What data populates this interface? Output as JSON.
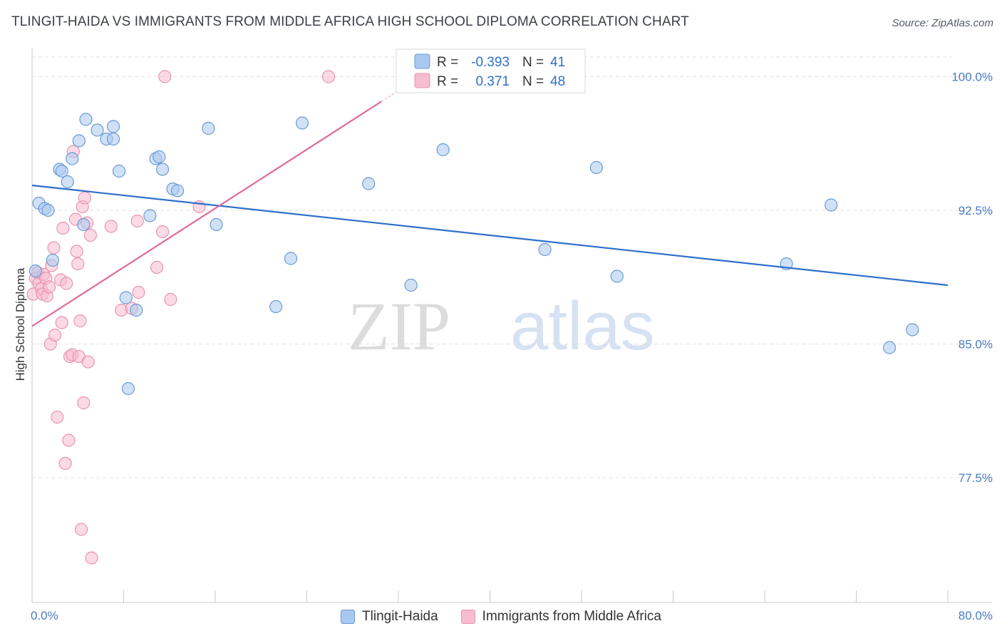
{
  "title": "TLINGIT-HAIDA VS IMMIGRANTS FROM MIDDLE AFRICA HIGH SCHOOL DIPLOMA CORRELATION CHART",
  "source": "Source: ZipAtlas.com",
  "watermark": {
    "zip": "ZIP",
    "atlas": "atlas"
  },
  "colors": {
    "blue_fill": "#a9c8ef",
    "blue_stroke": "#6a9ad6",
    "blue_line": "#2e6fcc",
    "pink_fill": "#f7bcd0",
    "pink_stroke": "#e893b0",
    "pink_line": "#e06a95",
    "tick_text": "#4a7cc4",
    "grid": "#e2e2e2"
  },
  "stats_legend": [
    {
      "r_label": "R =",
      "r_value": "-0.393",
      "n_label": "N =",
      "n_value": "41"
    },
    {
      "r_label": "R =",
      "r_value": "0.371",
      "n_label": "N =",
      "n_value": "48"
    }
  ],
  "chart_data": {
    "type": "scatter",
    "ylabel": "High School Diploma",
    "xlim": [
      0,
      80
    ],
    "ylim": [
      70.5,
      101.5
    ],
    "y_ticks": [
      {
        "value": 100,
        "label": "100.0%"
      },
      {
        "value": 92.5,
        "label": "92.5%"
      },
      {
        "value": 85,
        "label": "85.0%"
      },
      {
        "value": 77.5,
        "label": "77.5%"
      }
    ],
    "x_tick_labels": [
      {
        "value": 0,
        "label": "0.0%"
      },
      {
        "value": 80,
        "label": "80.0%"
      }
    ],
    "x_minor_ticks": [
      8,
      16,
      24,
      32,
      40,
      48,
      56,
      64,
      72,
      80
    ],
    "grid": true,
    "legend_position": "bottom",
    "series": [
      {
        "name": "Tlingit-Haida",
        "trend": {
          "x": [
            0,
            80
          ],
          "y": [
            93.9,
            88.3
          ]
        },
        "points": [
          [
            0.3,
            89.1
          ],
          [
            0.6,
            92.9
          ],
          [
            1.1,
            92.6
          ],
          [
            1.4,
            92.5
          ],
          [
            2.4,
            94.8
          ],
          [
            2.6,
            94.7
          ],
          [
            3.1,
            94.1
          ],
          [
            1.8,
            89.7
          ],
          [
            3.5,
            95.4
          ],
          [
            4.1,
            96.4
          ],
          [
            4.7,
            97.6
          ],
          [
            5.7,
            97.0
          ],
          [
            6.5,
            96.5
          ],
          [
            7.1,
            96.5
          ],
          [
            7.1,
            97.2
          ],
          [
            7.6,
            94.7
          ],
          [
            4.5,
            91.7
          ],
          [
            8.2,
            87.6
          ],
          [
            8.4,
            82.5
          ],
          [
            9.1,
            86.9
          ],
          [
            10.3,
            92.2
          ],
          [
            10.8,
            95.4
          ],
          [
            11.1,
            95.5
          ],
          [
            11.4,
            94.8
          ],
          [
            12.3,
            93.7
          ],
          [
            12.7,
            93.6
          ],
          [
            15.4,
            97.1
          ],
          [
            16.1,
            91.7
          ],
          [
            21.3,
            87.1
          ],
          [
            22.6,
            89.8
          ],
          [
            23.6,
            97.4
          ],
          [
            29.4,
            94.0
          ],
          [
            33.1,
            88.3
          ],
          [
            35.9,
            95.9
          ],
          [
            44.8,
            90.3
          ],
          [
            49.3,
            94.9
          ],
          [
            51.1,
            88.8
          ],
          [
            65.9,
            89.5
          ],
          [
            69.8,
            92.8
          ],
          [
            74.9,
            84.8
          ],
          [
            76.9,
            85.8
          ]
        ]
      },
      {
        "name": "Immigrants from Middle Africa",
        "trend": {
          "x": [
            0,
            30.5
          ],
          "y": [
            86.0,
            98.6
          ]
        },
        "points": [
          [
            0.1,
            87.8
          ],
          [
            0.3,
            88.7
          ],
          [
            0.5,
            89.0
          ],
          [
            0.6,
            88.4
          ],
          [
            0.8,
            88.1
          ],
          [
            0.9,
            87.8
          ],
          [
            1.0,
            88.9
          ],
          [
            1.2,
            88.7
          ],
          [
            1.3,
            87.7
          ],
          [
            1.5,
            88.2
          ],
          [
            1.6,
            85.0
          ],
          [
            1.7,
            89.4
          ],
          [
            1.9,
            90.4
          ],
          [
            2.0,
            85.5
          ],
          [
            2.2,
            80.9
          ],
          [
            2.5,
            88.6
          ],
          [
            2.6,
            86.2
          ],
          [
            2.7,
            91.5
          ],
          [
            2.9,
            78.3
          ],
          [
            3.0,
            88.4
          ],
          [
            3.2,
            79.6
          ],
          [
            3.3,
            84.3
          ],
          [
            3.5,
            84.4
          ],
          [
            3.6,
            95.8
          ],
          [
            3.8,
            92.0
          ],
          [
            3.9,
            90.2
          ],
          [
            4.0,
            89.5
          ],
          [
            4.1,
            84.3
          ],
          [
            4.2,
            86.3
          ],
          [
            4.3,
            74.6
          ],
          [
            4.4,
            92.7
          ],
          [
            4.5,
            81.7
          ],
          [
            4.6,
            93.2
          ],
          [
            4.8,
            91.8
          ],
          [
            4.9,
            84.0
          ],
          [
            5.1,
            91.1
          ],
          [
            5.2,
            73.0
          ],
          [
            6.9,
            91.6
          ],
          [
            7.8,
            86.9
          ],
          [
            8.7,
            87.0
          ],
          [
            9.2,
            91.9
          ],
          [
            9.3,
            87.9
          ],
          [
            10.9,
            89.3
          ],
          [
            11.4,
            91.3
          ],
          [
            12.1,
            87.5
          ],
          [
            11.6,
            100.0
          ],
          [
            14.6,
            92.7
          ],
          [
            25.9,
            100.0
          ]
        ]
      }
    ]
  }
}
